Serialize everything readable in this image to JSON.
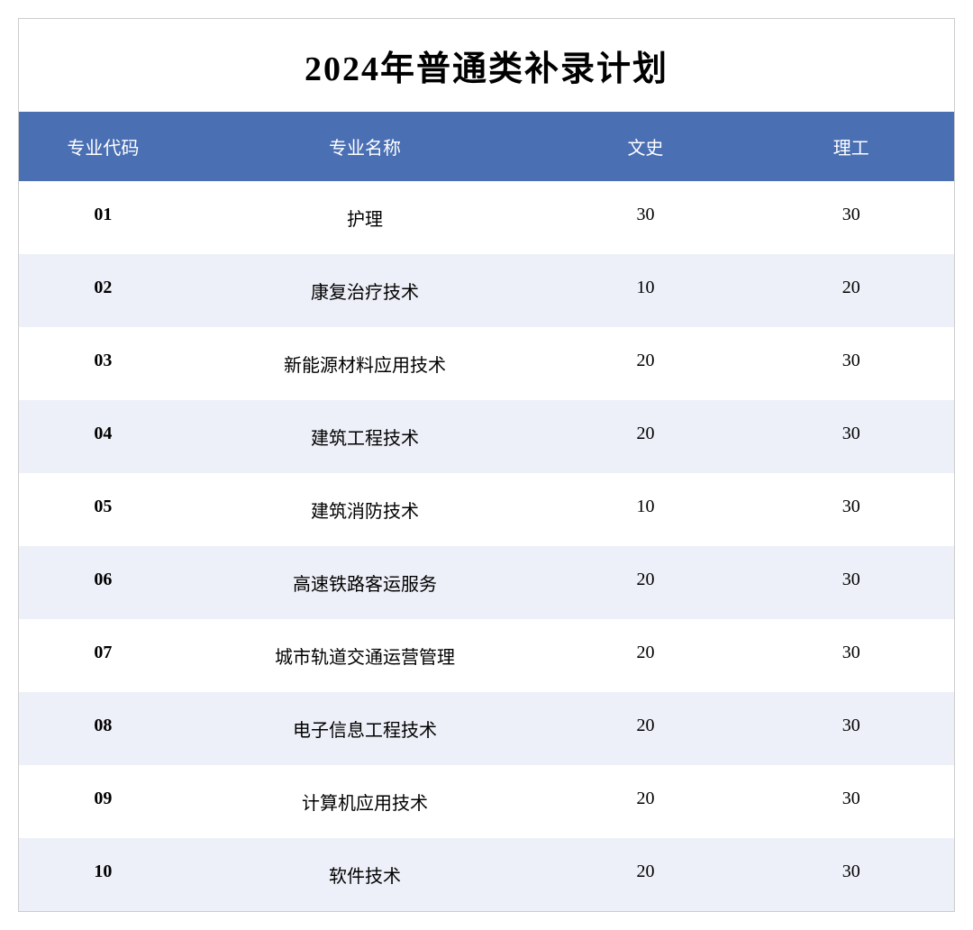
{
  "table": {
    "title": "2024年普通类补录计划",
    "title_fontsize": 38,
    "header_bg_color": "#4a6fb3",
    "header_text_color": "#ffffff",
    "row_even_bg": "#ffffff",
    "row_odd_bg": "#edf0f8",
    "cell_text_color": "#000000",
    "cell_fontsize": 20,
    "border_color": "#cccccc",
    "columns": [
      {
        "key": "code",
        "label": "专业代码",
        "width_pct": 18
      },
      {
        "key": "name",
        "label": "专业名称",
        "width_pct": 38
      },
      {
        "key": "wenshi",
        "label": "文史",
        "width_pct": 22
      },
      {
        "key": "ligong",
        "label": "理工",
        "width_pct": 22
      }
    ],
    "rows": [
      {
        "code": "01",
        "name": "护理",
        "wenshi": "30",
        "ligong": "30"
      },
      {
        "code": "02",
        "name": "康复治疗技术",
        "wenshi": "10",
        "ligong": "20"
      },
      {
        "code": "03",
        "name": "新能源材料应用技术",
        "wenshi": "20",
        "ligong": "30"
      },
      {
        "code": "04",
        "name": "建筑工程技术",
        "wenshi": "20",
        "ligong": "30"
      },
      {
        "code": "05",
        "name": "建筑消防技术",
        "wenshi": "10",
        "ligong": "30"
      },
      {
        "code": "06",
        "name": "高速铁路客运服务",
        "wenshi": "20",
        "ligong": "30"
      },
      {
        "code": "07",
        "name": "城市轨道交通运营管理",
        "wenshi": "20",
        "ligong": "30"
      },
      {
        "code": "08",
        "name": "电子信息工程技术",
        "wenshi": "20",
        "ligong": "30"
      },
      {
        "code": "09",
        "name": "计算机应用技术",
        "wenshi": "20",
        "ligong": "30"
      },
      {
        "code": "10",
        "name": "软件技术",
        "wenshi": "20",
        "ligong": "30"
      }
    ]
  }
}
